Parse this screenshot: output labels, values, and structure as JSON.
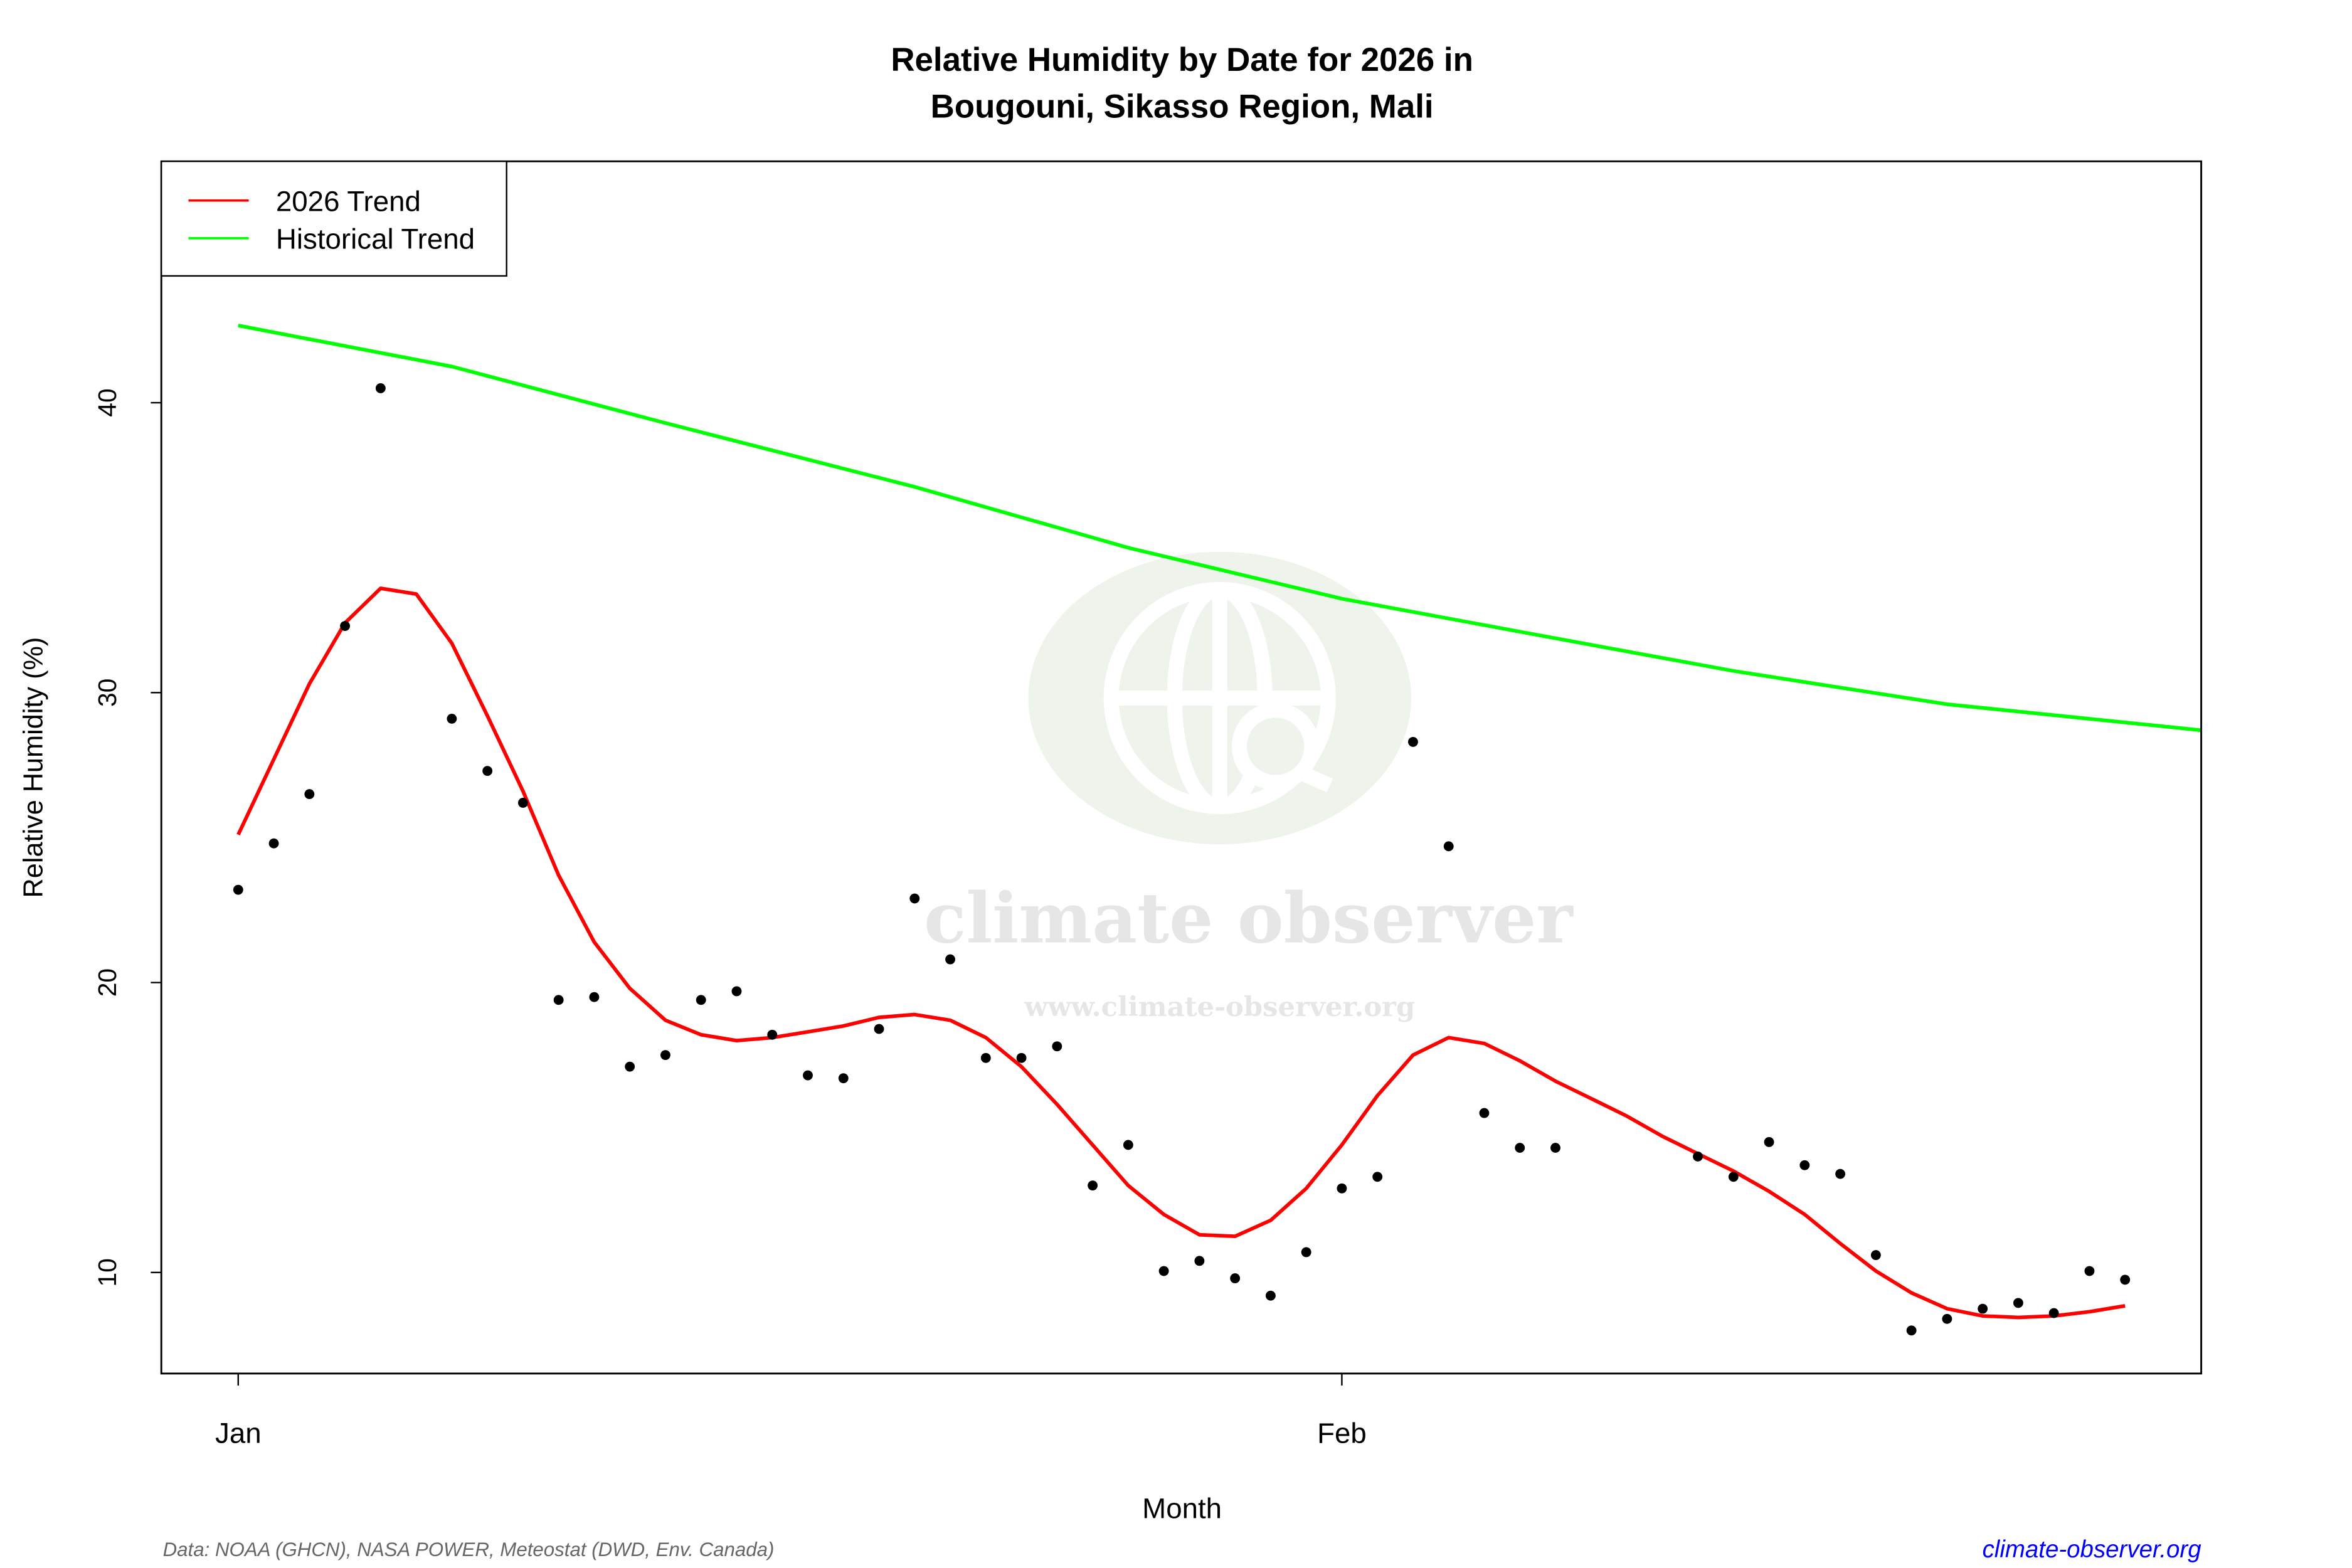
{
  "chart_data": {
    "type": "line",
    "title": "Relative Humidity by Date for 2026 in",
    "subtitle": "Bougouni, Sikasso Region, Mali",
    "xlabel": "Month",
    "ylabel": "Relative Humidity (%)",
    "x_ticks": [
      {
        "label": "Jan",
        "date": "2026-01-01"
      },
      {
        "label": "Feb",
        "date": "2026-02-01"
      }
    ],
    "y_ticks": [
      10,
      20,
      30,
      40
    ],
    "xlim": [
      "2025-12-29.8",
      "2026-02-25.2"
    ],
    "ylim": [
      6.5,
      48.3
    ],
    "grid": false,
    "legend_placement": "top-left",
    "series": [
      {
        "name": "2026 Trend",
        "kind": "line",
        "color": "#ff0000",
        "x": [
          "2026-01-01",
          "2026-01-02",
          "2026-01-03",
          "2026-01-04",
          "2026-01-05",
          "2026-01-06",
          "2026-01-07",
          "2026-01-08",
          "2026-01-09",
          "2026-01-10",
          "2026-01-11",
          "2026-01-12",
          "2026-01-13",
          "2026-01-14",
          "2026-01-15",
          "2026-01-16",
          "2026-01-17",
          "2026-01-18",
          "2026-01-19",
          "2026-01-20",
          "2026-01-21",
          "2026-01-22",
          "2026-01-23",
          "2026-01-24",
          "2026-01-25",
          "2026-01-26",
          "2026-01-27",
          "2026-01-28",
          "2026-01-29",
          "2026-01-30",
          "2026-01-31",
          "2026-02-01",
          "2026-02-02",
          "2026-02-03",
          "2026-02-04",
          "2026-02-05",
          "2026-02-06",
          "2026-02-07",
          "2026-02-08",
          "2026-02-09",
          "2026-02-10",
          "2026-02-11",
          "2026-02-12",
          "2026-02-13",
          "2026-02-14",
          "2026-02-15",
          "2026-02-16",
          "2026-02-17",
          "2026-02-18",
          "2026-02-19",
          "2026-02-20",
          "2026-02-21",
          "2026-02-22",
          "2026-02-23"
        ],
        "values": [
          25.1,
          27.7,
          30.3,
          32.4,
          33.6,
          33.4,
          31.7,
          29.2,
          26.6,
          23.7,
          21.4,
          19.8,
          18.7,
          18.2,
          18.0,
          18.1,
          18.3,
          18.5,
          18.8,
          18.9,
          18.7,
          18.1,
          17.1,
          15.8,
          14.4,
          13.0,
          12.0,
          11.3,
          11.25,
          11.8,
          12.9,
          14.4,
          16.1,
          17.5,
          18.1,
          17.9,
          17.3,
          16.6,
          16.0,
          15.4,
          14.7,
          14.1,
          13.5,
          12.8,
          12.0,
          11.0,
          10.05,
          9.3,
          8.75,
          8.5,
          8.45,
          8.5,
          8.65,
          8.85
        ]
      },
      {
        "name": "Historical Trend",
        "kind": "line",
        "color": "#00ff00",
        "x": [
          "2026-01-01",
          "2026-01-07",
          "2026-01-13",
          "2026-01-20",
          "2026-01-26",
          "2026-02-01",
          "2026-02-06",
          "2026-02-12",
          "2026-02-18",
          "2026-02-25"
        ],
        "values": [
          42.66,
          41.25,
          39.3,
          37.1,
          35.0,
          33.24,
          32.1,
          30.75,
          29.6,
          28.72
        ]
      },
      {
        "kind": "points",
        "color": "#000000",
        "x": [
          "2026-01-01",
          "2026-01-02",
          "2026-01-03",
          "2026-01-04",
          "2026-01-05",
          "2026-01-07",
          "2026-01-08",
          "2026-01-09",
          "2026-01-10",
          "2026-01-11",
          "2026-01-12",
          "2026-01-13",
          "2026-01-14",
          "2026-01-15",
          "2026-01-16",
          "2026-01-17",
          "2026-01-18",
          "2026-01-19",
          "2026-01-20",
          "2026-01-21",
          "2026-01-22",
          "2026-01-23",
          "2026-01-24",
          "2026-01-25",
          "2026-01-26",
          "2026-01-27",
          "2026-01-28",
          "2026-01-29",
          "2026-01-30",
          "2026-01-31",
          "2026-02-01",
          "2026-02-02",
          "2026-02-03",
          "2026-02-04",
          "2026-02-05",
          "2026-02-06",
          "2026-02-07",
          "2026-02-11",
          "2026-02-12",
          "2026-02-13",
          "2026-02-14",
          "2026-02-15",
          "2026-02-16",
          "2026-02-17",
          "2026-02-18",
          "2026-02-19",
          "2026-02-20",
          "2026-02-21",
          "2026-02-22",
          "2026-02-23"
        ],
        "values": [
          23.2,
          24.8,
          26.5,
          32.3,
          40.5,
          29.1,
          27.3,
          26.2,
          19.4,
          19.5,
          17.1,
          17.5,
          19.4,
          19.7,
          18.2,
          16.8,
          16.7,
          18.4,
          22.9,
          20.8,
          17.4,
          17.4,
          17.8,
          13.0,
          14.4,
          10.05,
          10.4,
          9.8,
          9.2,
          10.7,
          12.9,
          13.3,
          28.3,
          24.7,
          15.5,
          14.3,
          14.3,
          14.0,
          13.3,
          14.5,
          13.7,
          13.4,
          10.6,
          8.0,
          8.4,
          8.75,
          8.95,
          8.6,
          10.05,
          9.75
        ]
      }
    ]
  },
  "legend": {
    "items": [
      "2026 Trend",
      "Historical Trend"
    ]
  },
  "watermark": {
    "name": "climate observer",
    "url": "www.climate-observer.org"
  },
  "footer": {
    "source": "Data: NOAA (GHCN), NASA POWER, Meteostat (DWD, Env. Canada)",
    "link": "climate-observer.org",
    "link_color": "#0000ff"
  }
}
